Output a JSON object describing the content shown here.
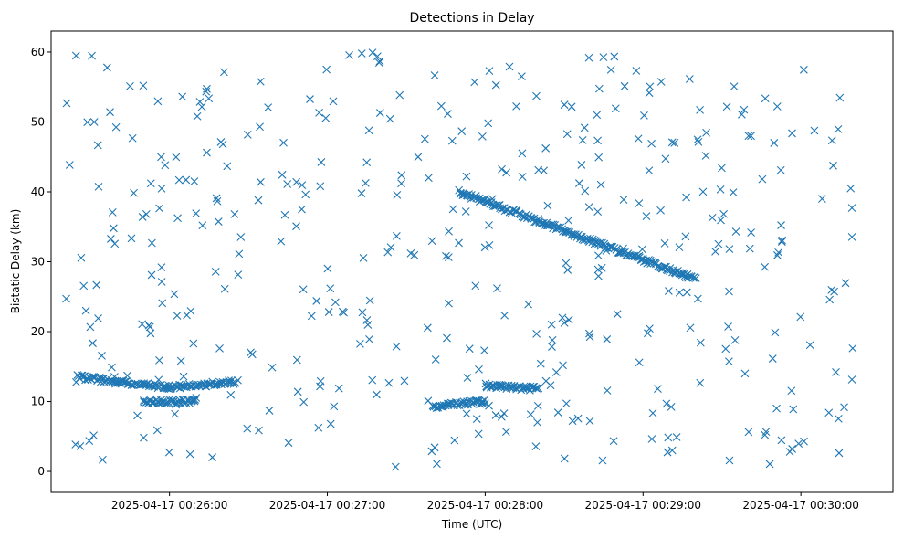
{
  "chart_data": {
    "type": "scatter",
    "title": "Detections in Delay",
    "xlabel": "Time (UTC)",
    "ylabel": "Bistatic Delay (km)",
    "marker": "x",
    "color": "#1f77b4",
    "grid": false,
    "legend": "none",
    "xlim": [
      "2025-04-17 00:25:15",
      "2025-04-17 00:30:35"
    ],
    "ylim": [
      -3,
      63
    ],
    "xticks": [
      "2025-04-17 00:26:00",
      "2025-04-17 00:27:00",
      "2025-04-17 00:28:00",
      "2025-04-17 00:29:00",
      "2025-04-17 00:30:00"
    ],
    "yticks": [
      0,
      10,
      20,
      30,
      40,
      50,
      60
    ],
    "tracks": [
      {
        "x_start": "2025-04-17 00:25:25",
        "x_end": "2025-04-17 00:26:00",
        "y_start": 13.5,
        "y_end": 12.0
      },
      {
        "x_start": "2025-04-17 00:26:00",
        "x_end": "2025-04-17 00:26:25",
        "y_start": 12.0,
        "y_end": 12.8
      },
      {
        "x_start": "2025-04-17 00:27:50",
        "x_end": "2025-04-17 00:29:20",
        "y_start": 40.0,
        "y_end": 27.5
      },
      {
        "x_start": "2025-04-17 00:28:00",
        "x_end": "2025-04-17 00:28:20",
        "y_start": 12.3,
        "y_end": 11.8
      },
      {
        "x_start": "2025-04-17 00:27:40",
        "x_end": "2025-04-17 00:28:00",
        "y_start": 9.3,
        "y_end": 10.0
      },
      {
        "x_start": "2025-04-17 00:25:50",
        "x_end": "2025-04-17 00:26:10",
        "y_start": 10.0,
        "y_end": 10.0
      }
    ],
    "detection_count": 900,
    "noise_y_range": [
      0.5,
      60
    ]
  }
}
